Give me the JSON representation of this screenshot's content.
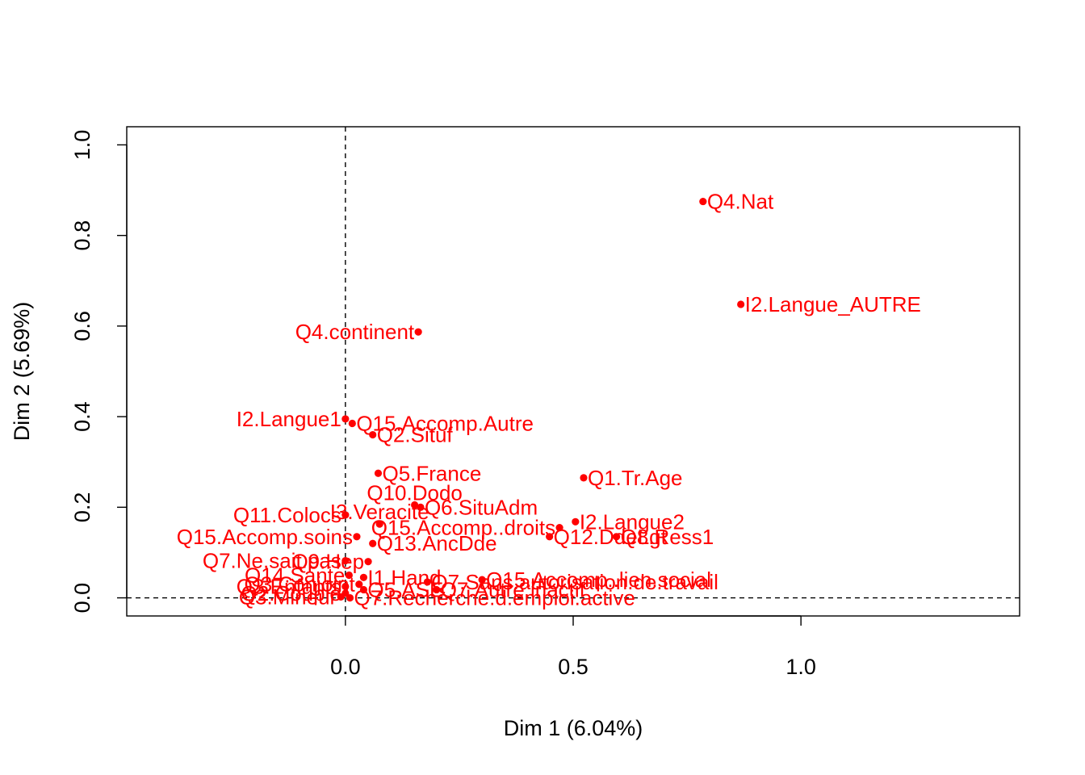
{
  "chart_data": {
    "type": "scatter",
    "xlabel": "Dim 1 (6.04%)",
    "ylabel": "Dim 2 (5.69%)",
    "xlim": [
      -0.48,
      1.48
    ],
    "ylim": [
      -0.04,
      1.04
    ],
    "x_ticks": [
      0.0,
      0.5,
      1.0
    ],
    "x_tick_labels": [
      "0.0",
      "0.5",
      "1.0"
    ],
    "y_ticks": [
      0.0,
      0.2,
      0.4,
      0.6,
      0.8,
      1.0
    ],
    "y_tick_labels": [
      "0.0",
      "0.2",
      "0.4",
      "0.6",
      "0.8",
      "1.0"
    ],
    "reference_lines": {
      "x": 0,
      "y": 0,
      "style": "dashed"
    },
    "point_color": "#ff0000",
    "points": [
      {
        "label": "Q4.Nat",
        "x": 0.785,
        "y": 0.875,
        "pos": "right"
      },
      {
        "label": "I2.Langue_AUTRE",
        "x": 0.868,
        "y": 0.648,
        "pos": "right"
      },
      {
        "label": "Q4.continent",
        "x": 0.16,
        "y": 0.587,
        "pos": "left"
      },
      {
        "label": "Q15.Accomp.Autre",
        "x": 0.015,
        "y": 0.385,
        "pos": "right"
      },
      {
        "label": "I2.Langue1",
        "x": 0.0,
        "y": 0.395,
        "pos": "left"
      },
      {
        "label": "Q2.Situf",
        "x": 0.06,
        "y": 0.36,
        "pos": "right"
      },
      {
        "label": "Q5.France",
        "x": 0.072,
        "y": 0.275,
        "pos": "right"
      },
      {
        "label": "Q1.Tr.Age",
        "x": 0.523,
        "y": 0.265,
        "pos": "right"
      },
      {
        "label": "Q10.Dodo",
        "x": 0.152,
        "y": 0.205,
        "pos": "top"
      },
      {
        "label": "Q11.Colocs",
        "x": 0.0,
        "y": 0.183,
        "pos": "left"
      },
      {
        "label": "I3.Veracite",
        "x": 0.075,
        "y": 0.163,
        "pos": "top"
      },
      {
        "label": "Q6.SituAdm",
        "x": 0.165,
        "y": 0.2,
        "pos": "right"
      },
      {
        "label": "I2.Langue2",
        "x": 0.505,
        "y": 0.168,
        "pos": "right"
      },
      {
        "label": "Q15.Accomp.soins",
        "x": 0.025,
        "y": 0.135,
        "pos": "left"
      },
      {
        "label": "Q15.Accomp..droits",
        "x": 0.47,
        "y": 0.155,
        "pos": "left"
      },
      {
        "label": "Q12.DdeLgt",
        "x": 0.448,
        "y": 0.135,
        "pos": "right"
      },
      {
        "label": "Q8.Ress1",
        "x": 0.595,
        "y": 0.135,
        "pos": "right"
      },
      {
        "label": "Q13.AncDde",
        "x": 0.06,
        "y": 0.12,
        "pos": "right"
      },
      {
        "label": "Q7.Ne.sait.pas",
        "x": 0.0,
        "y": 0.082,
        "pos": "left"
      },
      {
        "label": "Q9.Hep",
        "x": 0.05,
        "y": 0.08,
        "pos": "left"
      },
      {
        "label": "Q14.Sante",
        "x": 0.008,
        "y": 0.05,
        "pos": "left"
      },
      {
        "label": "I1.Hand",
        "x": 0.04,
        "y": 0.045,
        "pos": "right"
      },
      {
        "label": "Q7.Sans.autorisation.de.travail",
        "x": 0.18,
        "y": 0.035,
        "pos": "right"
      },
      {
        "label": "Q15.Accomp..lien.social",
        "x": 0.3,
        "y": 0.04,
        "pos": "right"
      },
      {
        "label": "Q3.Enfants",
        "x": 0.0,
        "y": 0.025,
        "pos": "left"
      },
      {
        "label": "Q3.Conjoint",
        "x": 0.03,
        "y": 0.03,
        "pos": "left"
      },
      {
        "label": "Q5.ASE",
        "x": 0.04,
        "y": 0.018,
        "pos": "right"
      },
      {
        "label": "Q7.Autre.inactif",
        "x": 0.2,
        "y": 0.018,
        "pos": "right"
      },
      {
        "label": "Q2.Couple",
        "x": 0.0,
        "y": 0.01,
        "pos": "left"
      },
      {
        "label": "Q3.Mineur",
        "x": -0.01,
        "y": 0.002,
        "pos": "left"
      },
      {
        "label": "Q7.Recherche.d.emploi.active",
        "x": 0.01,
        "y": 0.0,
        "pos": "right"
      }
    ]
  }
}
